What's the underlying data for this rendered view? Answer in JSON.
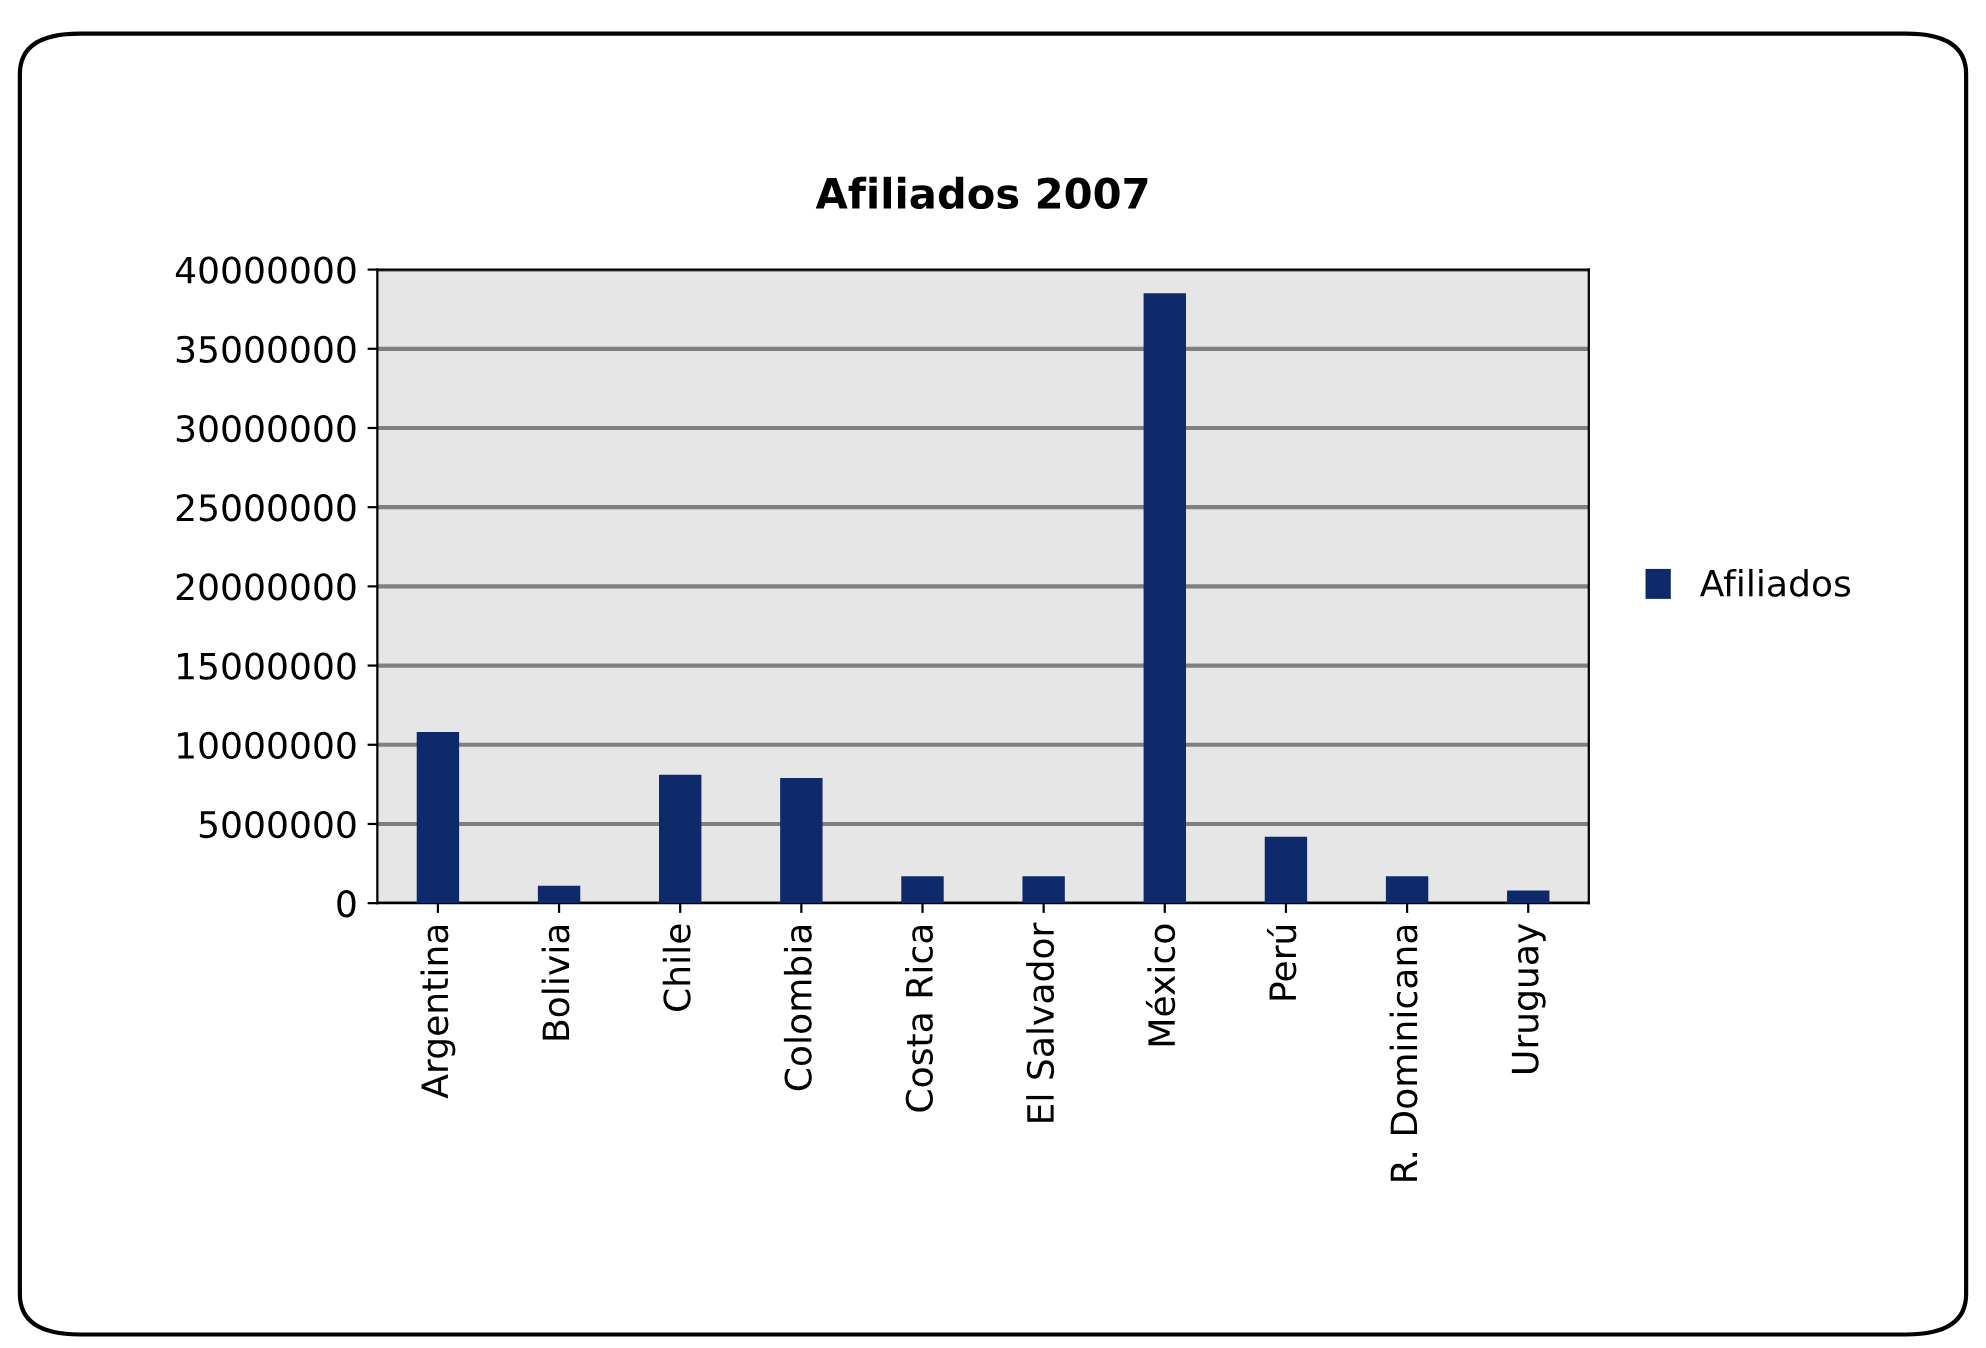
{
  "chart_data": {
    "type": "bar",
    "title": "Afiliados 2007",
    "categories": [
      "Argentina",
      "Bolivia",
      "Chile",
      "Colombia",
      "Costa Rica",
      "El Salvador",
      "México",
      "Perú",
      "R. Dominicana",
      "Uruguay"
    ],
    "series": [
      {
        "name": "Afiliados",
        "color": "#0f2a6b",
        "values": [
          10800000,
          1100000,
          8100000,
          7900000,
          1700000,
          1700000,
          38500000,
          4200000,
          1700000,
          800000
        ]
      }
    ],
    "ylim": [
      0,
      40000000
    ],
    "yticks": [
      0,
      5000000,
      10000000,
      15000000,
      20000000,
      25000000,
      30000000,
      35000000,
      40000000
    ],
    "grid": "y",
    "legend": "right"
  }
}
